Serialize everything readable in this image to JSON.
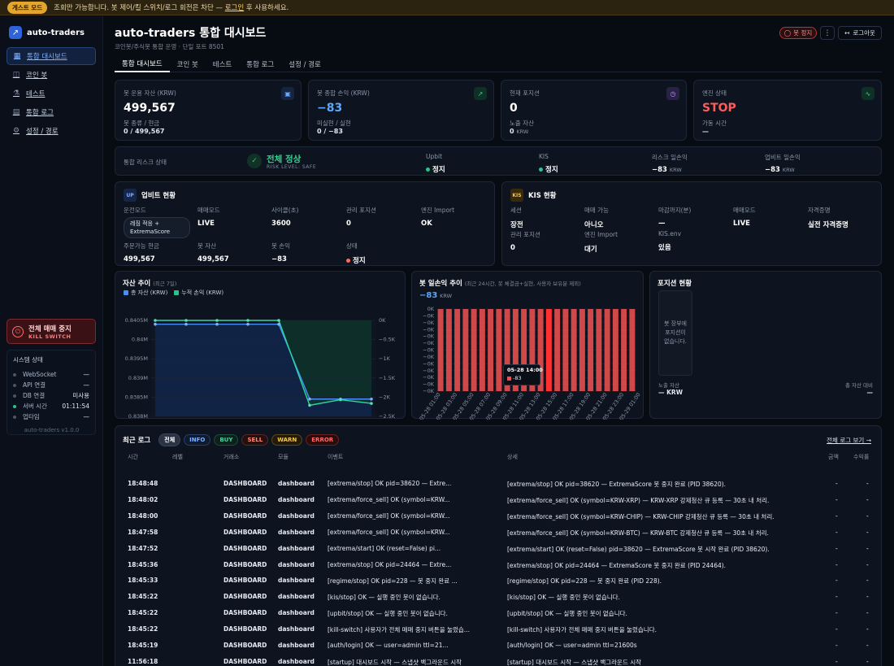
{
  "banner": {
    "badge": "게스트 모드",
    "text_before": "조회만 가능합니다. 봇 제어/킬 스위치/로그 회전은 차단 —",
    "link": "로그인",
    "text_after": "후 사용하세요."
  },
  "app": {
    "name": "auto-traders",
    "version": "auto-traders v1.0.0"
  },
  "nav": [
    {
      "label": "통합 대시보드",
      "icon": "grid-icon"
    },
    {
      "label": "코인 봇",
      "icon": "bot-icon"
    },
    {
      "label": "테스트",
      "icon": "flask-icon"
    },
    {
      "label": "통합 로그",
      "icon": "log-icon"
    },
    {
      "label": "설정 / 경로",
      "icon": "gear-icon"
    }
  ],
  "kill": {
    "title": "전체 매매 중지",
    "sub": "KILL SWITCH"
  },
  "system": {
    "title": "시스템 상태",
    "items": [
      {
        "label": "WebSocket",
        "value": "—",
        "ok": false
      },
      {
        "label": "API 연결",
        "value": "—",
        "ok": false
      },
      {
        "label": "DB 연결",
        "value": "미사용",
        "ok": false
      },
      {
        "label": "서버 시간",
        "value": "01:11:54",
        "ok": true
      },
      {
        "label": "업타임",
        "value": "—",
        "ok": false
      }
    ]
  },
  "header": {
    "title": "auto-traders 통합 대시보드",
    "subtitle": "코인봇/주식봇 통합 운영 · 단일 포트 8501",
    "stop": "봇 정지",
    "more": "⋮",
    "logout": "로그아웃"
  },
  "tabs": [
    "통합 대시보드",
    "코인 봇",
    "테스트",
    "통합 로그",
    "설정 / 경로"
  ],
  "kpis": [
    {
      "label": "봇 운용 자산 (KRW)",
      "value": "499,567",
      "sub1": "봇 종류 / 현금",
      "sub2": "0 / 499,567",
      "sub2_unit": "",
      "icon": "wallet-icon",
      "color": "#ffffff"
    },
    {
      "label": "봇 종합 손익 (KRW)",
      "value": "−83",
      "sub1": "미실현 / 실현",
      "sub2": "0 / −83",
      "sub2_unit": "",
      "icon": "trend-up-icon",
      "color": "#59a8ff"
    },
    {
      "label": "현재 포지션",
      "value": "0",
      "sub1": "노출 자산",
      "sub2": "0",
      "sub2_unit": "KRW",
      "icon": "clock-icon",
      "color": "#ffffff"
    },
    {
      "label": "엔진 상태",
      "value": "STOP",
      "sub1": "가동 시간",
      "sub2": "—",
      "sub2_unit": "",
      "icon": "pulse-icon",
      "color": "#ff5b5b"
    }
  ],
  "risk": {
    "label": "통합 리스크 상태",
    "status": "전체 정상",
    "level": "RISK LEVEL: SAFE",
    "cols": [
      {
        "label": "Upbit",
        "value": "정지",
        "unit": ""
      },
      {
        "label": "KIS",
        "value": "정지",
        "unit": ""
      },
      {
        "label": "리스크 일손익",
        "value": "−83",
        "unit": "KRW"
      },
      {
        "label": "업비트 일손익",
        "value": "−83",
        "unit": "KRW"
      }
    ]
  },
  "upbit": {
    "badge": "UP",
    "title": "업비트 현황",
    "row1": [
      {
        "label": "운전모드",
        "value": "레짐 적응 + ExtremaScore"
      },
      {
        "label": "매매모드",
        "value": "LIVE"
      },
      {
        "label": "사이클(초)",
        "value": "3600"
      },
      {
        "label": "관리 포지션",
        "value": "0"
      },
      {
        "label": "엔진 Import",
        "value": "OK"
      }
    ],
    "row2": [
      {
        "label": "주문가능 현금",
        "value": "499,567"
      },
      {
        "label": "봇 자산",
        "value": "499,567"
      },
      {
        "label": "봇 손익",
        "value": "−83"
      },
      {
        "label": "상태",
        "value": "정지"
      }
    ]
  },
  "kis": {
    "badge": "KIS",
    "title": "KIS 현황",
    "row1": [
      {
        "label": "세션",
        "value": "장전"
      },
      {
        "label": "매매 가능",
        "value": "아니오"
      },
      {
        "label": "마감까지(분)",
        "value": "—"
      },
      {
        "label": "매매모드",
        "value": "LIVE"
      },
      {
        "label": "자격증명",
        "value": "실전 자격증명"
      }
    ],
    "row2": [
      {
        "label": "관리 포지션",
        "value": "0"
      },
      {
        "label": "엔진 Import",
        "value": "대기"
      },
      {
        "label": "KIS.env",
        "value": "있음"
      }
    ]
  },
  "asset_chart": {
    "title": "자산 추이",
    "title_note": "(최근 7일)"
  },
  "pnl_chart": {
    "title": "봇 일손익 추이",
    "title_note": "(최근 24시간, 봇 체결금+실현, 사용자 보유분 제외)",
    "value": "−83",
    "unit": "KRW",
    "tooltip_time": "05-28 14:00",
    "tooltip_value": "-83"
  },
  "positions": {
    "title": "포지션 현황",
    "empty": "봇 장부에 포지션이 없습니다.",
    "exposure_label": "노출 자산",
    "exposure_value": "— KRW",
    "ratio_label": "총 자산 대비",
    "ratio_value": "—"
  },
  "chart_data": [
    {
      "type": "line",
      "x": [
        "05-22",
        "05-23",
        "05-24",
        "05-25",
        "05-26",
        "05-27",
        "05-28",
        "05-29"
      ],
      "series": [
        {
          "name": "총 자산 (KRW)",
          "axis": "left",
          "values": [
            840400,
            840400,
            840400,
            840400,
            840400,
            838450,
            838450,
            838450
          ]
        },
        {
          "name": "누적 손익 (KRW)",
          "axis": "right",
          "values": [
            0,
            0,
            0,
            0,
            0,
            -2300,
            -2150,
            -2250
          ]
        }
      ],
      "y_left": {
        "ticks": [
          "0.838M",
          "0.8385M",
          "0.839M",
          "0.8395M",
          "0.84M",
          "0.8405M"
        ],
        "range": [
          838000,
          840500
        ]
      },
      "y_right": {
        "ticks": [
          "0K",
          "−0.5K",
          "−1K",
          "−1.5K",
          "−2K",
          "−2.5K"
        ],
        "range": [
          -2600,
          0
        ]
      },
      "grid": true,
      "legend": "top-left"
    },
    {
      "type": "bar",
      "x": [
        "05-28 01:00",
        "05-28 02:00",
        "05-28 03:00",
        "05-28 04:00",
        "05-28 05:00",
        "05-28 06:00",
        "05-28 07:00",
        "05-28 08:00",
        "05-28 09:00",
        "05-28 10:00",
        "05-28 11:00",
        "05-28 12:00",
        "05-28 13:00",
        "05-28 14:00",
        "05-28 15:00",
        "05-28 16:00",
        "05-28 17:00",
        "05-28 18:00",
        "05-28 19:00",
        "05-28 20:00",
        "05-28 21:00",
        "05-28 22:00",
        "05-28 23:00",
        "05-29 00:00"
      ],
      "x_ticks": [
        "05-28 01:00",
        "05-28 03:00",
        "05-28 05:00",
        "05-28 07:00",
        "05-28 09:00",
        "05-28 11:00",
        "05-28 13:00",
        "05-28 15:00",
        "05-28 17:00",
        "05-28 19:00",
        "05-28 21:00",
        "05-28 23:00",
        "05-29 01:00"
      ],
      "values": [
        -83,
        -83,
        -83,
        -83,
        -83,
        -83,
        -83,
        -83,
        -83,
        -83,
        -83,
        -83,
        -83,
        -83,
        -83,
        -83,
        -83,
        -83,
        -83,
        -83,
        -83,
        -83,
        -83,
        -83
      ],
      "y_ticks": [
        "0K",
        "−0K",
        "−0K",
        "−0K",
        "−0K",
        "−0K",
        "−0K",
        "−0K",
        "−0K",
        "−0K",
        "−0K",
        "−0K",
        "−0K"
      ],
      "ylim": [
        -83,
        0
      ],
      "highlight": "05-28 14:00",
      "grid": true
    }
  ],
  "logs": {
    "title": "최근 로그",
    "filters": [
      "전체",
      "INFO",
      "BUY",
      "SELL",
      "WARN",
      "ERROR"
    ],
    "view_all": "전체 로그 보기 →",
    "columns": [
      "시간",
      "레벨",
      "거래소",
      "모듈",
      "이벤트",
      "상세",
      "금액",
      "수익률"
    ],
    "rows": [
      {
        "time": "18:48:48",
        "level": "INFO",
        "exchange": "DASHBOARD",
        "module": "dashboard",
        "event": "[extrema/stop] OK pid=38620 — Extre...",
        "detail": "[extrema/stop] OK pid=38620 — ExtremaScore 봇 중지 완료 (PID 38620).",
        "amount": "-",
        "pnl": "-"
      },
      {
        "time": "18:48:02",
        "level": "INFO",
        "exchange": "DASHBOARD",
        "module": "dashboard",
        "event": "[extrema/force_sell] OK (symbol=KRW...",
        "detail": "[extrema/force_sell] OK (symbol=KRW-XRP) — KRW-XRP 강제청산 큐 등록 — 30초 내 처리.",
        "amount": "-",
        "pnl": "-"
      },
      {
        "time": "18:48:00",
        "level": "INFO",
        "exchange": "DASHBOARD",
        "module": "dashboard",
        "event": "[extrema/force_sell] OK (symbol=KRW...",
        "detail": "[extrema/force_sell] OK (symbol=KRW-CHIP) — KRW-CHIP 강제청산 큐 등록 — 30초 내 처리.",
        "amount": "-",
        "pnl": "-"
      },
      {
        "time": "18:47:58",
        "level": "INFO",
        "exchange": "DASHBOARD",
        "module": "dashboard",
        "event": "[extrema/force_sell] OK (symbol=KRW...",
        "detail": "[extrema/force_sell] OK (symbol=KRW-BTC) — KRW-BTC 강제청산 큐 등록 — 30초 내 처리.",
        "amount": "-",
        "pnl": "-"
      },
      {
        "time": "18:47:52",
        "level": "INFO",
        "exchange": "DASHBOARD",
        "module": "dashboard",
        "event": "[extrema/start] OK (reset=False) pi...",
        "detail": "[extrema/start] OK (reset=False) pid=38620 — ExtremaScore 봇 시작 완료 (PID 38620).",
        "amount": "-",
        "pnl": "-"
      },
      {
        "time": "18:45:36",
        "level": "INFO",
        "exchange": "DASHBOARD",
        "module": "dashboard",
        "event": "[extrema/stop] OK pid=24464 — Extre...",
        "detail": "[extrema/stop] OK pid=24464 — ExtremaScore 봇 중지 완료 (PID 24464).",
        "amount": "-",
        "pnl": "-"
      },
      {
        "time": "18:45:33",
        "level": "INFO",
        "exchange": "DASHBOARD",
        "module": "dashboard",
        "event": "[regime/stop] OK pid=228 — 봇 중지 완료 ...",
        "detail": "[regime/stop] OK pid=228 — 봇 중지 완료 (PID 228).",
        "amount": "-",
        "pnl": "-"
      },
      {
        "time": "18:45:22",
        "level": "INFO",
        "exchange": "DASHBOARD",
        "module": "dashboard",
        "event": "[kis/stop] OK — 실행 중인 봇이 없습니다.",
        "detail": "[kis/stop] OK — 실행 중인 봇이 없습니다.",
        "amount": "-",
        "pnl": "-"
      },
      {
        "time": "18:45:22",
        "level": "INFO",
        "exchange": "DASHBOARD",
        "module": "dashboard",
        "event": "[upbit/stop] OK — 실행 중인 봇이 없습니다.",
        "detail": "[upbit/stop] OK — 실행 중인 봇이 없습니다.",
        "amount": "-",
        "pnl": "-"
      },
      {
        "time": "18:45:22",
        "level": "WARNING",
        "exchange": "DASHBOARD",
        "module": "dashboard",
        "event": "[kill-switch] 사용자가 전체 매매 중지 버튼을 눌렀습...",
        "detail": "[kill-switch] 사용자가 전체 매매 중지 버튼을 눌렀습니다.",
        "amount": "-",
        "pnl": "-"
      },
      {
        "time": "18:45:19",
        "level": "INFO",
        "exchange": "DASHBOARD",
        "module": "dashboard",
        "event": "[auth/login] OK — user=admin ttl=21...",
        "detail": "[auth/login] OK — user=admin ttl=21600s",
        "amount": "-",
        "pnl": "-"
      },
      {
        "time": "11:56:18",
        "level": "INFO",
        "exchange": "DASHBOARD",
        "module": "dashboard",
        "event": "[startup] 대시보드 시작 — 스냅샷 백그라운드 시작",
        "detail": "[startup] 대시보드 시작 — 스냅샷 백그라운드 시작",
        "amount": "-",
        "pnl": "-"
      }
    ]
  }
}
